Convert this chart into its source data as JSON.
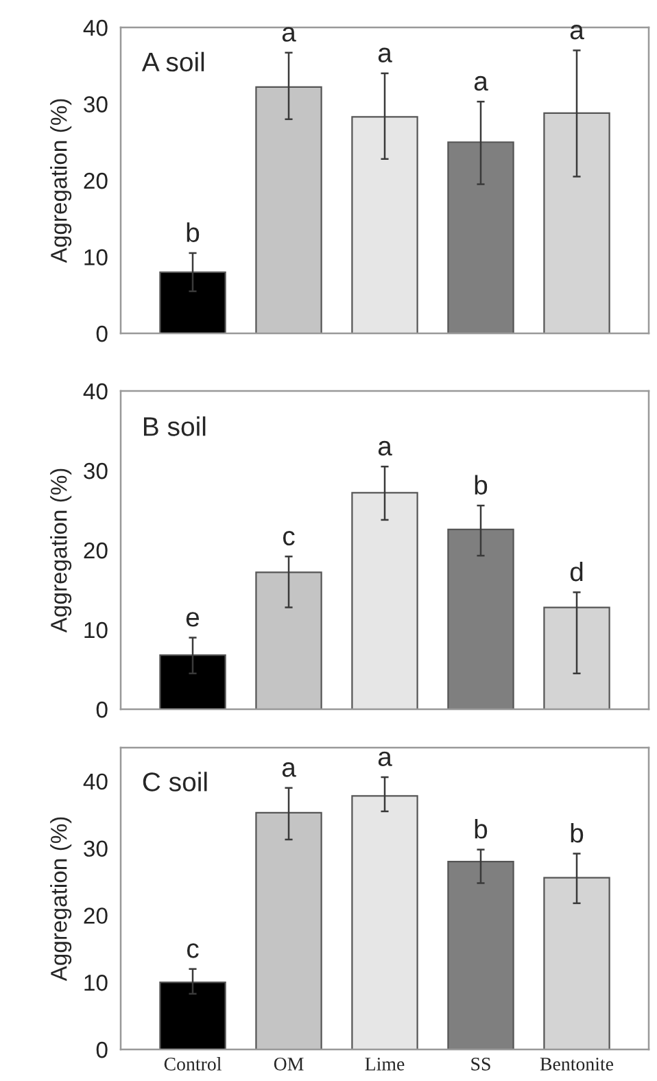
{
  "chart_data": [
    {
      "type": "bar",
      "ylabel": "Aggregation (%)",
      "categories": [
        "Control",
        "OM",
        "Lime",
        "SS",
        "Bentonite"
      ],
      "values": [
        8,
        32.2,
        28.3,
        25,
        28.8
      ],
      "errors": [
        [
          5.5,
          10.5
        ],
        [
          28,
          36.7
        ],
        [
          22.8,
          34
        ],
        [
          19.5,
          30.3
        ],
        [
          20.5,
          37
        ]
      ],
      "colors": [
        "#000000",
        "#c4c4c4",
        "#e6e6e6",
        "#7f7f7f",
        "#d4d4d4"
      ],
      "ylim": [
        0,
        40
      ],
      "yticks": [
        0,
        10,
        20,
        30,
        40
      ],
      "tick_labels": "y",
      "grid": false,
      "legend": false,
      "annotations": [
        "A soil",
        {
          "text": "b",
          "x": "Control",
          "y": 10.5
        },
        {
          "text": "a",
          "x": "OM",
          "y": 36.7
        },
        {
          "text": "a",
          "x": "Lime",
          "y": 34
        },
        {
          "text": "a",
          "x": "SS",
          "y": 30.3
        },
        {
          "text": "a",
          "x": "Bentonite",
          "y": 37
        }
      ]
    },
    {
      "type": "bar",
      "ylabel": "Aggregation (%)",
      "categories": [
        "Control",
        "OM",
        "Lime",
        "SS",
        "Bentonite"
      ],
      "values": [
        6.8,
        17.2,
        27.2,
        22.6,
        12.8
      ],
      "errors": [
        [
          4.5,
          9
        ],
        [
          12.8,
          19.2
        ],
        [
          23.8,
          30.5
        ],
        [
          19.3,
          25.6
        ],
        [
          4.5,
          14.7
        ]
      ],
      "colors": [
        "#000000",
        "#c4c4c4",
        "#e6e6e6",
        "#7f7f7f",
        "#d4d4d4"
      ],
      "ylim": [
        0,
        40
      ],
      "yticks": [
        0,
        10,
        20,
        30,
        40
      ],
      "tick_labels": "y",
      "grid": false,
      "legend": false,
      "annotations": [
        "B soil",
        {
          "text": "e",
          "x": "Control",
          "y": 9
        },
        {
          "text": "c",
          "x": "OM",
          "y": 19.2
        },
        {
          "text": "a",
          "x": "Lime",
          "y": 30.5
        },
        {
          "text": "b",
          "x": "SS",
          "y": 25.6
        },
        {
          "text": "d",
          "x": "Bentonite",
          "y": 14.7
        }
      ]
    },
    {
      "type": "bar",
      "ylabel": "Aggregation (%)",
      "categories": [
        "Control",
        "OM",
        "Lime",
        "SS",
        "Bentonite"
      ],
      "values": [
        10,
        35.3,
        37.8,
        28,
        25.6
      ],
      "errors": [
        [
          8.3,
          12
        ],
        [
          31.3,
          39
        ],
        [
          35.5,
          40.6
        ],
        [
          24.8,
          29.8
        ],
        [
          21.8,
          29.2
        ]
      ],
      "colors": [
        "#000000",
        "#c4c4c4",
        "#e6e6e6",
        "#7f7f7f",
        "#d4d4d4"
      ],
      "ylim": [
        0,
        45
      ],
      "yticks": [
        0,
        10,
        20,
        30,
        40
      ],
      "grid": false,
      "legend": false,
      "annotations": [
        "C soil",
        {
          "text": "c",
          "x": "Control",
          "y": 12
        },
        {
          "text": "a",
          "x": "OM",
          "y": 39
        },
        {
          "text": "a",
          "x": "Lime",
          "y": 40.6
        },
        {
          "text": "b",
          "x": "SS",
          "y": 29.8
        },
        {
          "text": "b",
          "x": "Bentonite",
          "y": 29.2
        }
      ]
    }
  ]
}
